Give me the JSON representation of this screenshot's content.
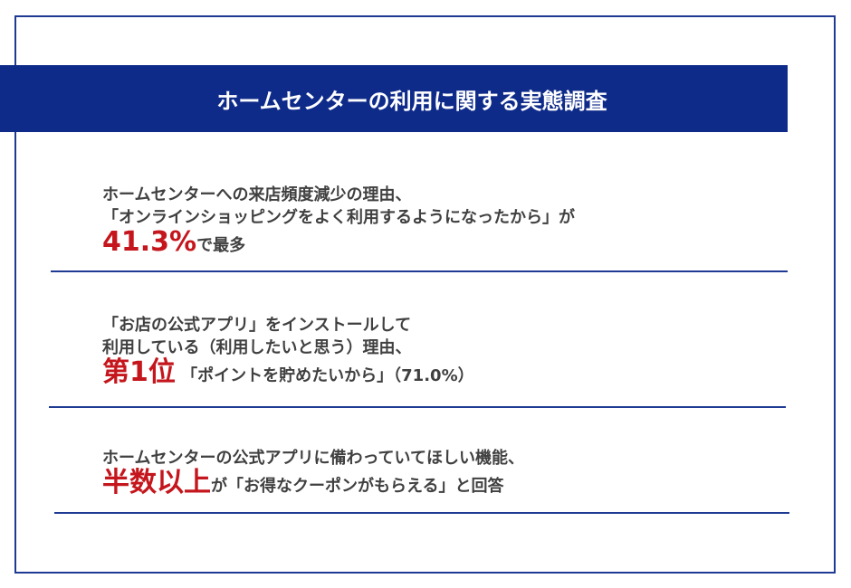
{
  "title": "ホームセンターの利用に関する実態調査",
  "colors": {
    "title_bg": "#0f2b8a",
    "accent_red": "#c4161c",
    "frame": "#1f3a93",
    "text": "#404040"
  },
  "items": [
    {
      "line1": "ホームセンターへの来店頻度減少の理由、",
      "line2": "「オンラインショッピングをよく利用するようになったから」が",
      "highlight": "41.3%",
      "tail": "で最多"
    },
    {
      "line1": "「お店の公式アプリ」をインストールして",
      "line2": "利用している（利用したいと思う）理由、",
      "highlight": "第1位",
      "tail": "「ポイントを貯めたいから」（71.0%）"
    },
    {
      "line1": "ホームセンターの公式アプリに備わっていてほしい機能、",
      "highlight": "半数以上",
      "tail": "が「お得なクーポンがもらえる」と回答"
    }
  ]
}
